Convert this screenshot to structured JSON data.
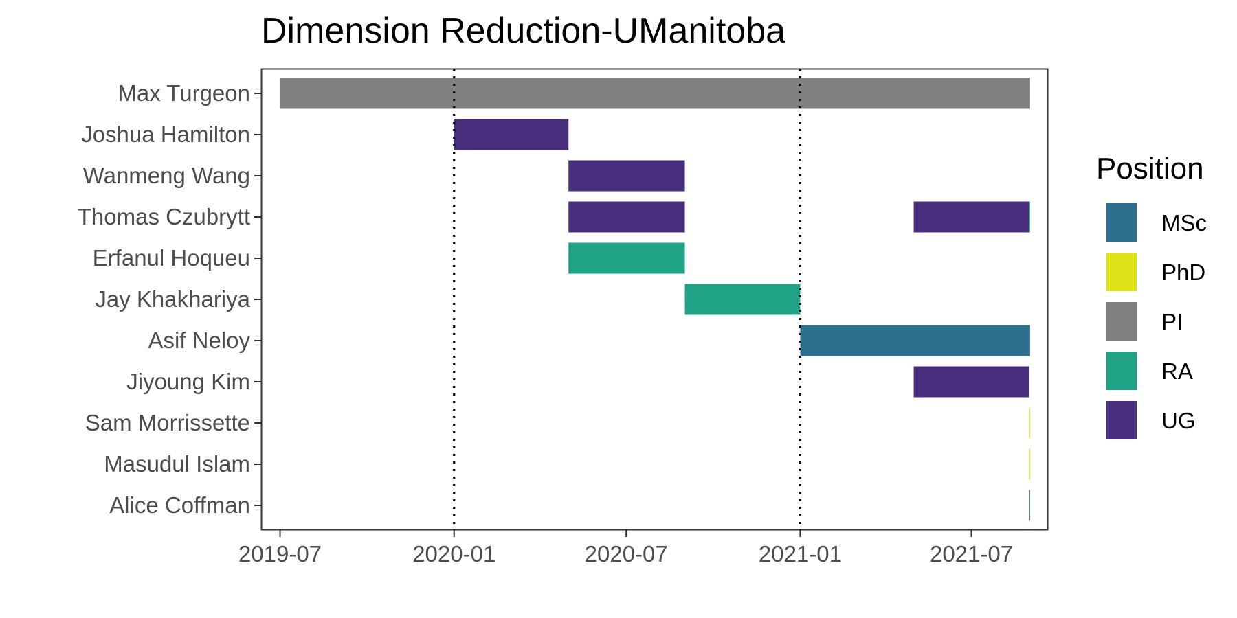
{
  "chart_data": {
    "type": "bar",
    "orientation": "horizontal-timeline",
    "title": "Dimension Reduction-UManitoba",
    "xlabel": "",
    "ylabel": "",
    "x_ticks": [
      "2019-07",
      "2020-01",
      "2020-07",
      "2021-01",
      "2021-07"
    ],
    "xlim": [
      "2019-06-11",
      "2021-09-20"
    ],
    "reference_lines": [
      "2020-01-01",
      "2021-01-01"
    ],
    "people": [
      "Max Turgeon",
      "Joshua Hamilton",
      "Wanmeng Wang",
      "Thomas Czubrytt",
      "Erfanul Hoqueu",
      "Jay Khakhariya",
      "Asif Neloy",
      "Jiyoung Kim",
      "Sam Morrissette",
      "Masudul Islam",
      "Alice Coffman"
    ],
    "segments": [
      {
        "person": "Max Turgeon",
        "position": "PI",
        "start": "2019-07-01",
        "end": "2021-09-01"
      },
      {
        "person": "Joshua Hamilton",
        "position": "UG",
        "start": "2020-01-01",
        "end": "2020-05-01"
      },
      {
        "person": "Wanmeng Wang",
        "position": "UG",
        "start": "2020-05-01",
        "end": "2020-09-01"
      },
      {
        "person": "Thomas Czubrytt",
        "position": "UG",
        "start": "2020-05-01",
        "end": "2020-09-01"
      },
      {
        "person": "Thomas Czubrytt",
        "position": "UG",
        "start": "2021-05-01",
        "end": "2021-08-31"
      },
      {
        "person": "Thomas Czubrytt",
        "position": "RA",
        "start": "2021-08-31",
        "end": "2021-09-01"
      },
      {
        "person": "Erfanul Hoqueu",
        "position": "RA",
        "start": "2020-05-01",
        "end": "2020-09-01"
      },
      {
        "person": "Jay Khakhariya",
        "position": "RA",
        "start": "2020-09-01",
        "end": "2021-01-01"
      },
      {
        "person": "Asif Neloy",
        "position": "MSc",
        "start": "2021-01-01",
        "end": "2021-09-01"
      },
      {
        "person": "Jiyoung Kim",
        "position": "UG",
        "start": "2021-05-01",
        "end": "2021-08-31"
      },
      {
        "person": "Sam Morrissette",
        "position": "PhD",
        "start": "2021-08-31",
        "end": "2021-09-01"
      },
      {
        "person": "Masudul Islam",
        "position": "PhD",
        "start": "2021-08-31",
        "end": "2021-09-01"
      },
      {
        "person": "Alice Coffman",
        "position": "MSc",
        "start": "2021-08-31",
        "end": "2021-09-01"
      }
    ],
    "legend": {
      "title": "Position",
      "placement": "right",
      "entries": [
        {
          "label": "MSc",
          "color": "#2d6f8e"
        },
        {
          "label": "PhD",
          "color": "#dde318"
        },
        {
          "label": "PI",
          "color": "#808080"
        },
        {
          "label": "RA",
          "color": "#20a386"
        },
        {
          "label": "UG",
          "color": "#472d7b"
        }
      ]
    },
    "grid": false
  }
}
